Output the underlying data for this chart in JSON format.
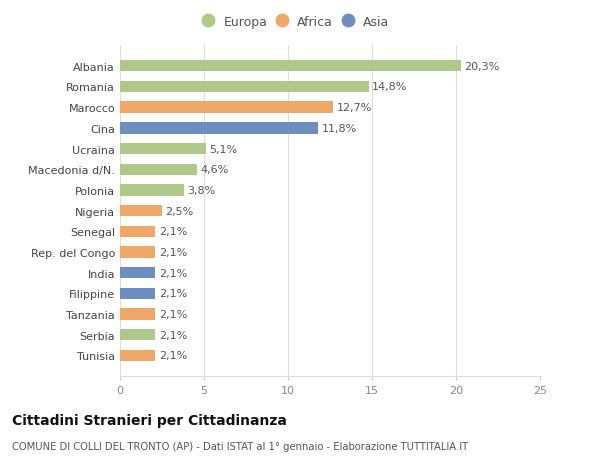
{
  "categories": [
    "Tunisia",
    "Serbia",
    "Tanzania",
    "Filippine",
    "India",
    "Rep. del Congo",
    "Senegal",
    "Nigeria",
    "Polonia",
    "Macedonia d/N.",
    "Ucraina",
    "Cina",
    "Marocco",
    "Romania",
    "Albania"
  ],
  "values": [
    2.1,
    2.1,
    2.1,
    2.1,
    2.1,
    2.1,
    2.1,
    2.5,
    3.8,
    4.6,
    5.1,
    11.8,
    12.7,
    14.8,
    20.3
  ],
  "labels": [
    "2,1%",
    "2,1%",
    "2,1%",
    "2,1%",
    "2,1%",
    "2,1%",
    "2,1%",
    "2,5%",
    "3,8%",
    "4,6%",
    "5,1%",
    "11,8%",
    "12,7%",
    "14,8%",
    "20,3%"
  ],
  "bar_colors": [
    "#f0a868",
    "#aec98a",
    "#f0a868",
    "#6e8ebf",
    "#6e8ebf",
    "#f0a868",
    "#f0a868",
    "#f0a868",
    "#aec98a",
    "#aec98a",
    "#aec98a",
    "#6e8ebf",
    "#f0a868",
    "#aec98a",
    "#aec98a"
  ],
  "title": "Cittadini Stranieri per Cittadinanza",
  "subtitle": "COMUNE DI COLLI DEL TRONTO (AP) - Dati ISTAT al 1° gennaio - Elaborazione TUTTITALIA.IT",
  "xlim": [
    0,
    25
  ],
  "xticks": [
    0,
    5,
    10,
    15,
    20,
    25
  ],
  "legend_labels": [
    "Europa",
    "Africa",
    "Asia"
  ],
  "legend_colors": [
    "#aec98a",
    "#f0a868",
    "#6e8ebf"
  ],
  "background_color": "#ffffff",
  "grid_color": "#dddddd",
  "label_fontsize": 8,
  "ytick_fontsize": 8,
  "xtick_fontsize": 8,
  "bar_height": 0.55
}
